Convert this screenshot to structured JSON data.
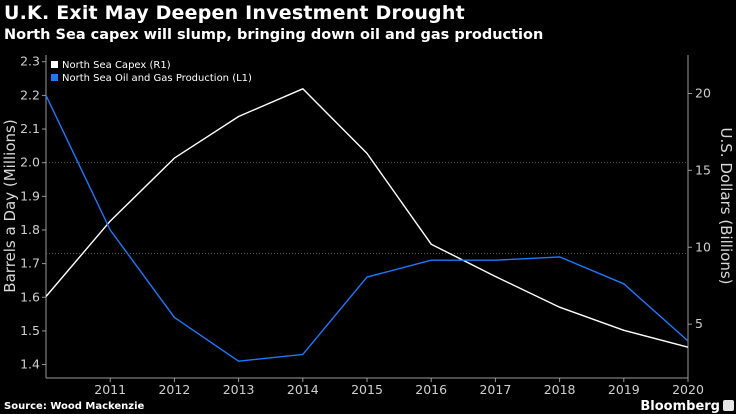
{
  "chart_data": {
    "type": "line",
    "title": "U.K. Exit May Deepen Investment Drought",
    "subtitle": "North Sea capex will slump, bringing down oil and gas production",
    "x": [
      2010,
      2011,
      2012,
      2013,
      2014,
      2015,
      2016,
      2017,
      2018,
      2019,
      2020
    ],
    "x_tick_labels": [
      "2011",
      "2012",
      "2013",
      "2014",
      "2015",
      "2016",
      "2017",
      "2018",
      "2019",
      "2020"
    ],
    "ylabel_left": "Barrels a Day (Millions)",
    "ylabel_right": "U.S. Dollars (Billions)",
    "ylim_left": [
      1.36,
      2.32
    ],
    "yticks_left": [
      "2.3",
      "2.2",
      "2.1",
      "2.0",
      "1.9",
      "1.8",
      "1.7",
      "1.6",
      "1.5",
      "1.4"
    ],
    "ylim_right": [
      1.5,
      22.5
    ],
    "yticks_right": [
      "20",
      "15",
      "10",
      "5"
    ],
    "series": [
      {
        "name": "North Sea Capex (R1)",
        "axis": "right",
        "color": "#ffffff",
        "values": [
          6.8,
          11.7,
          15.8,
          18.5,
          20.3,
          16.1,
          10.2,
          8.1,
          6.1,
          4.6,
          3.5
        ]
      },
      {
        "name": "North Sea Oil and Gas Production (L1)",
        "axis": "left",
        "color": "#1e78ff",
        "values": [
          2.2,
          1.8,
          1.54,
          1.41,
          1.43,
          1.66,
          1.71,
          1.71,
          1.72,
          1.64,
          1.47
        ]
      }
    ],
    "gridlines": [
      2.0,
      1.73
    ],
    "legend_position": "top-left"
  },
  "footer": {
    "source": "Source: Wood Mackenzie",
    "brand": "Bloomberg"
  }
}
